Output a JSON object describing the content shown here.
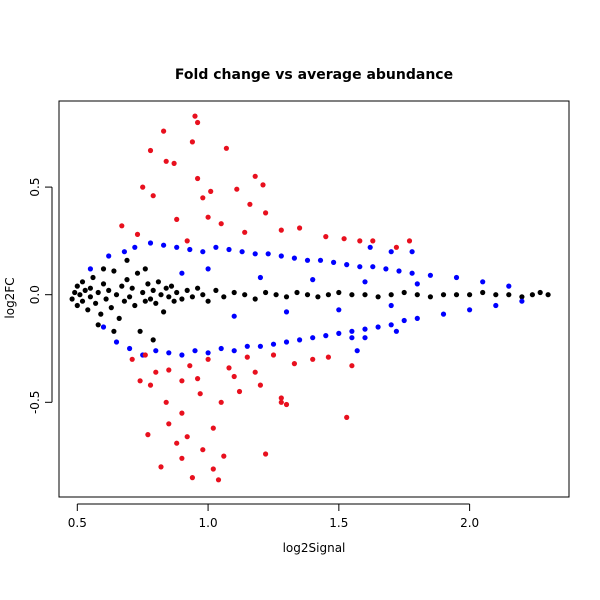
{
  "chart_data": {
    "type": "scatter",
    "title": "Fold change vs average abundance",
    "xlabel": "log2Signal",
    "ylabel": "log2FC",
    "xlim": [
      0.43,
      2.38
    ],
    "ylim": [
      -0.94,
      0.9
    ],
    "xticks": [
      0.5,
      1.0,
      1.5,
      2.0
    ],
    "xtick_labels": [
      "0.5",
      "1.0",
      "1.5",
      "2.0"
    ],
    "yticks": [
      -0.5,
      0.0,
      0.5
    ],
    "ytick_labels": [
      "-0.5",
      "0.0",
      "0.5"
    ],
    "grid": false,
    "colors": {
      "black": "#000000",
      "blue": "#0000ff",
      "red": "#e8101e"
    },
    "series": [
      {
        "color": "black",
        "points": [
          [
            0.48,
            -0.02
          ],
          [
            0.49,
            0.01
          ],
          [
            0.5,
            -0.05
          ],
          [
            0.5,
            0.04
          ],
          [
            0.51,
            0.0
          ],
          [
            0.52,
            -0.03
          ],
          [
            0.52,
            0.06
          ],
          [
            0.53,
            0.02
          ],
          [
            0.54,
            -0.07
          ],
          [
            0.55,
            0.03
          ],
          [
            0.55,
            -0.01
          ],
          [
            0.56,
            0.08
          ],
          [
            0.57,
            -0.04
          ],
          [
            0.58,
            0.01
          ],
          [
            0.59,
            -0.09
          ],
          [
            0.6,
            0.05
          ],
          [
            0.61,
            -0.02
          ],
          [
            0.62,
            0.02
          ],
          [
            0.63,
            -0.06
          ],
          [
            0.64,
            0.11
          ],
          [
            0.65,
            0.0
          ],
          [
            0.66,
            -0.11
          ],
          [
            0.67,
            0.04
          ],
          [
            0.68,
            -0.03
          ],
          [
            0.69,
            0.07
          ],
          [
            0.7,
            -0.01
          ],
          [
            0.71,
            0.03
          ],
          [
            0.72,
            -0.05
          ],
          [
            0.73,
            0.1
          ],
          [
            0.74,
            -0.17
          ],
          [
            0.75,
            0.01
          ],
          [
            0.76,
            -0.03
          ],
          [
            0.77,
            0.05
          ],
          [
            0.78,
            -0.02
          ],
          [
            0.79,
            0.02
          ],
          [
            0.8,
            -0.04
          ],
          [
            0.81,
            0.06
          ],
          [
            0.82,
            0.0
          ],
          [
            0.83,
            -0.08
          ],
          [
            0.84,
            0.03
          ],
          [
            0.85,
            -0.01
          ],
          [
            0.86,
            0.04
          ],
          [
            0.87,
            -0.03
          ],
          [
            0.88,
            0.01
          ],
          [
            0.9,
            -0.02
          ],
          [
            0.92,
            0.02
          ],
          [
            0.94,
            -0.01
          ],
          [
            0.96,
            0.03
          ],
          [
            0.98,
            0.0
          ],
          [
            1.0,
            -0.03
          ],
          [
            1.03,
            0.02
          ],
          [
            1.06,
            -0.01
          ],
          [
            1.1,
            0.01
          ],
          [
            1.14,
            0.0
          ],
          [
            1.18,
            -0.02
          ],
          [
            1.22,
            0.01
          ],
          [
            1.26,
            0.0
          ],
          [
            1.3,
            -0.01
          ],
          [
            1.34,
            0.01
          ],
          [
            1.38,
            0.0
          ],
          [
            1.42,
            -0.01
          ],
          [
            1.46,
            0.0
          ],
          [
            1.5,
            0.01
          ],
          [
            1.55,
            0.0
          ],
          [
            1.6,
            0.0
          ],
          [
            1.65,
            -0.01
          ],
          [
            1.7,
            0.0
          ],
          [
            1.75,
            0.01
          ],
          [
            1.8,
            0.0
          ],
          [
            1.85,
            -0.01
          ],
          [
            1.9,
            0.0
          ],
          [
            1.95,
            0.0
          ],
          [
            2.0,
            0.0
          ],
          [
            2.05,
            0.01
          ],
          [
            2.1,
            0.0
          ],
          [
            2.15,
            0.0
          ],
          [
            2.2,
            -0.01
          ],
          [
            2.24,
            0.0
          ],
          [
            2.27,
            0.01
          ],
          [
            2.3,
            0.0
          ],
          [
            0.64,
            -0.17
          ],
          [
            0.76,
            0.12
          ],
          [
            0.79,
            -0.21
          ],
          [
            0.69,
            0.16
          ],
          [
            0.58,
            -0.14
          ],
          [
            0.6,
            0.12
          ]
        ]
      },
      {
        "color": "blue",
        "points": [
          [
            0.55,
            0.12
          ],
          [
            0.6,
            -0.15
          ],
          [
            0.62,
            0.18
          ],
          [
            0.65,
            -0.22
          ],
          [
            0.68,
            0.2
          ],
          [
            0.7,
            -0.25
          ],
          [
            0.72,
            0.22
          ],
          [
            0.75,
            -0.28
          ],
          [
            0.78,
            0.24
          ],
          [
            0.8,
            -0.26
          ],
          [
            0.83,
            0.23
          ],
          [
            0.85,
            -0.27
          ],
          [
            0.88,
            0.22
          ],
          [
            0.9,
            -0.28
          ],
          [
            0.93,
            0.21
          ],
          [
            0.95,
            -0.26
          ],
          [
            0.98,
            0.2
          ],
          [
            1.0,
            -0.27
          ],
          [
            1.03,
            0.22
          ],
          [
            1.05,
            -0.25
          ],
          [
            1.08,
            0.21
          ],
          [
            1.1,
            -0.26
          ],
          [
            1.13,
            0.2
          ],
          [
            1.15,
            -0.24
          ],
          [
            1.18,
            0.19
          ],
          [
            1.2,
            -0.24
          ],
          [
            1.23,
            0.19
          ],
          [
            1.25,
            -0.23
          ],
          [
            1.28,
            0.18
          ],
          [
            1.3,
            -0.22
          ],
          [
            1.33,
            0.17
          ],
          [
            1.35,
            -0.21
          ],
          [
            1.38,
            0.16
          ],
          [
            1.4,
            -0.2
          ],
          [
            1.43,
            0.16
          ],
          [
            1.45,
            -0.19
          ],
          [
            1.48,
            0.15
          ],
          [
            1.5,
            -0.18
          ],
          [
            1.53,
            0.14
          ],
          [
            1.55,
            -0.17
          ],
          [
            1.58,
            0.13
          ],
          [
            1.6,
            -0.16
          ],
          [
            1.63,
            0.13
          ],
          [
            1.65,
            -0.15
          ],
          [
            1.68,
            0.12
          ],
          [
            1.7,
            -0.14
          ],
          [
            1.73,
            0.11
          ],
          [
            1.75,
            -0.12
          ],
          [
            1.78,
            0.1
          ],
          [
            1.8,
            -0.11
          ],
          [
            1.85,
            0.09
          ],
          [
            1.9,
            -0.09
          ],
          [
            1.95,
            0.08
          ],
          [
            2.0,
            -0.07
          ],
          [
            2.05,
            0.06
          ],
          [
            2.1,
            -0.05
          ],
          [
            2.15,
            0.04
          ],
          [
            2.2,
            -0.03
          ],
          [
            1.78,
            0.2
          ],
          [
            1.7,
            0.2
          ],
          [
            1.72,
            -0.17
          ],
          [
            1.57,
            -0.26
          ],
          [
            1.55,
            -0.2
          ],
          [
            1.6,
            -0.2
          ],
          [
            1.62,
            0.22
          ],
          [
            0.9,
            0.1
          ],
          [
            1.0,
            0.12
          ],
          [
            1.1,
            -0.1
          ],
          [
            1.2,
            0.08
          ],
          [
            1.3,
            -0.08
          ],
          [
            1.4,
            0.07
          ],
          [
            1.5,
            -0.07
          ],
          [
            1.6,
            0.06
          ],
          [
            1.7,
            -0.05
          ],
          [
            1.8,
            0.05
          ]
        ]
      },
      {
        "color": "red",
        "points": [
          [
            0.95,
            0.83
          ],
          [
            0.96,
            0.8
          ],
          [
            0.83,
            0.76
          ],
          [
            1.07,
            0.68
          ],
          [
            0.78,
            0.67
          ],
          [
            0.84,
            0.62
          ],
          [
            0.87,
            0.61
          ],
          [
            0.94,
            0.71
          ],
          [
            1.18,
            0.55
          ],
          [
            1.21,
            0.51
          ],
          [
            0.96,
            0.54
          ],
          [
            1.11,
            0.49
          ],
          [
            0.75,
            0.5
          ],
          [
            0.79,
            0.46
          ],
          [
            0.98,
            0.45
          ],
          [
            1.01,
            0.48
          ],
          [
            1.16,
            0.42
          ],
          [
            1.22,
            0.38
          ],
          [
            1.35,
            0.31
          ],
          [
            1.28,
            0.3
          ],
          [
            0.73,
            0.28
          ],
          [
            0.88,
            0.35
          ],
          [
            1.05,
            0.33
          ],
          [
            1.14,
            0.29
          ],
          [
            1.45,
            0.27
          ],
          [
            1.52,
            0.26
          ],
          [
            1.77,
            0.25
          ],
          [
            1.63,
            0.25
          ],
          [
            1.58,
            0.25
          ],
          [
            1.72,
            0.22
          ],
          [
            0.67,
            0.32
          ],
          [
            0.92,
            0.25
          ],
          [
            1.0,
            0.36
          ],
          [
            0.71,
            -0.3
          ],
          [
            0.76,
            -0.28
          ],
          [
            0.85,
            -0.35
          ],
          [
            0.93,
            -0.33
          ],
          [
            1.0,
            -0.3
          ],
          [
            1.08,
            -0.34
          ],
          [
            1.15,
            -0.29
          ],
          [
            1.25,
            -0.28
          ],
          [
            1.33,
            -0.32
          ],
          [
            1.4,
            -0.3
          ],
          [
            1.46,
            -0.29
          ],
          [
            1.55,
            -0.33
          ],
          [
            0.82,
            -0.8
          ],
          [
            0.85,
            -0.6
          ],
          [
            0.88,
            -0.69
          ],
          [
            0.92,
            -0.66
          ],
          [
            0.98,
            -0.72
          ],
          [
            1.02,
            -0.81
          ],
          [
            1.04,
            -0.86
          ],
          [
            1.06,
            -0.75
          ],
          [
            0.94,
            -0.85
          ],
          [
            0.78,
            -0.42
          ],
          [
            0.84,
            -0.5
          ],
          [
            0.9,
            -0.55
          ],
          [
            0.97,
            -0.46
          ],
          [
            1.05,
            -0.5
          ],
          [
            1.12,
            -0.45
          ],
          [
            1.2,
            -0.42
          ],
          [
            1.28,
            -0.5
          ],
          [
            1.3,
            -0.51
          ],
          [
            1.53,
            -0.57
          ],
          [
            1.22,
            -0.74
          ],
          [
            1.28,
            -0.48
          ],
          [
            0.77,
            -0.65
          ],
          [
            0.8,
            -0.36
          ],
          [
            0.74,
            -0.4
          ],
          [
            0.9,
            -0.4
          ],
          [
            1.1,
            -0.38
          ],
          [
            1.18,
            -0.36
          ],
          [
            0.96,
            -0.39
          ],
          [
            1.02,
            -0.62
          ],
          [
            0.9,
            -0.76
          ]
        ]
      }
    ]
  }
}
